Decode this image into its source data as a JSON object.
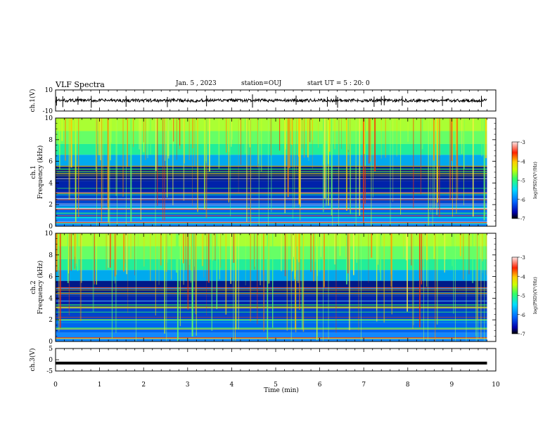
{
  "header": {
    "title": "VLF Spectra",
    "date": "Jan. 5 , 2023",
    "station": "station=OUJ",
    "start": "start UT = 5 : 20: 0"
  },
  "chart_data": [
    {
      "type": "line",
      "panel": "ch1-waveform",
      "ylabel": "ch.1(V)",
      "ylim": [
        -10,
        10
      ],
      "y_tick_labels": [
        "10",
        "-10"
      ],
      "x_range_min": [
        0,
        9.8
      ],
      "approx_baseline": 0,
      "approx_amplitude": 1.5
    },
    {
      "type": "heatmap",
      "panel": "ch1-spectrogram",
      "ylabel": "ch.1\nFrequency (kHz)",
      "ylim": [
        0,
        10
      ],
      "y_ticks": [
        0,
        2,
        4,
        6,
        8,
        10
      ],
      "x_range_min": [
        0,
        9.8
      ],
      "colorbar": {
        "label": "log(PSD)(V²/Hz)",
        "range": [
          -7,
          -3
        ],
        "ticks": [
          -7,
          -6,
          -5,
          -4,
          -3
        ]
      }
    },
    {
      "type": "heatmap",
      "panel": "ch2-spectrogram",
      "ylabel": "ch.2\nFrequency (kHz)",
      "ylim": [
        0,
        10
      ],
      "y_ticks": [
        0,
        2,
        4,
        6,
        8,
        10
      ],
      "x_range_min": [
        0,
        9.8
      ],
      "colorbar": {
        "label": "log(PSD)(V²/Hz)",
        "range": [
          -7,
          -3
        ],
        "ticks": [
          -7,
          -6,
          -5,
          -4,
          -3
        ]
      }
    },
    {
      "type": "line",
      "panel": "ch3-waveform",
      "ylabel": "ch.3(V)",
      "ylim": [
        -5,
        5
      ],
      "y_tick_labels": [
        "5",
        "0",
        "-5"
      ],
      "x_range_min": [
        0,
        9.8
      ],
      "approx_baseline": -1.5
    }
  ],
  "xaxis": {
    "label": "Time (min)",
    "ticks": [
      0,
      1,
      2,
      3,
      4,
      5,
      6,
      7,
      8,
      9,
      10
    ]
  },
  "colors": {
    "colormap": [
      "#000066",
      "#0000cc",
      "#0055ff",
      "#00aaff",
      "#00ddff",
      "#33ff66",
      "#aaff00",
      "#ffee00",
      "#ff6600",
      "#ff0000",
      "#ffdddd"
    ],
    "trace": "#000000"
  }
}
